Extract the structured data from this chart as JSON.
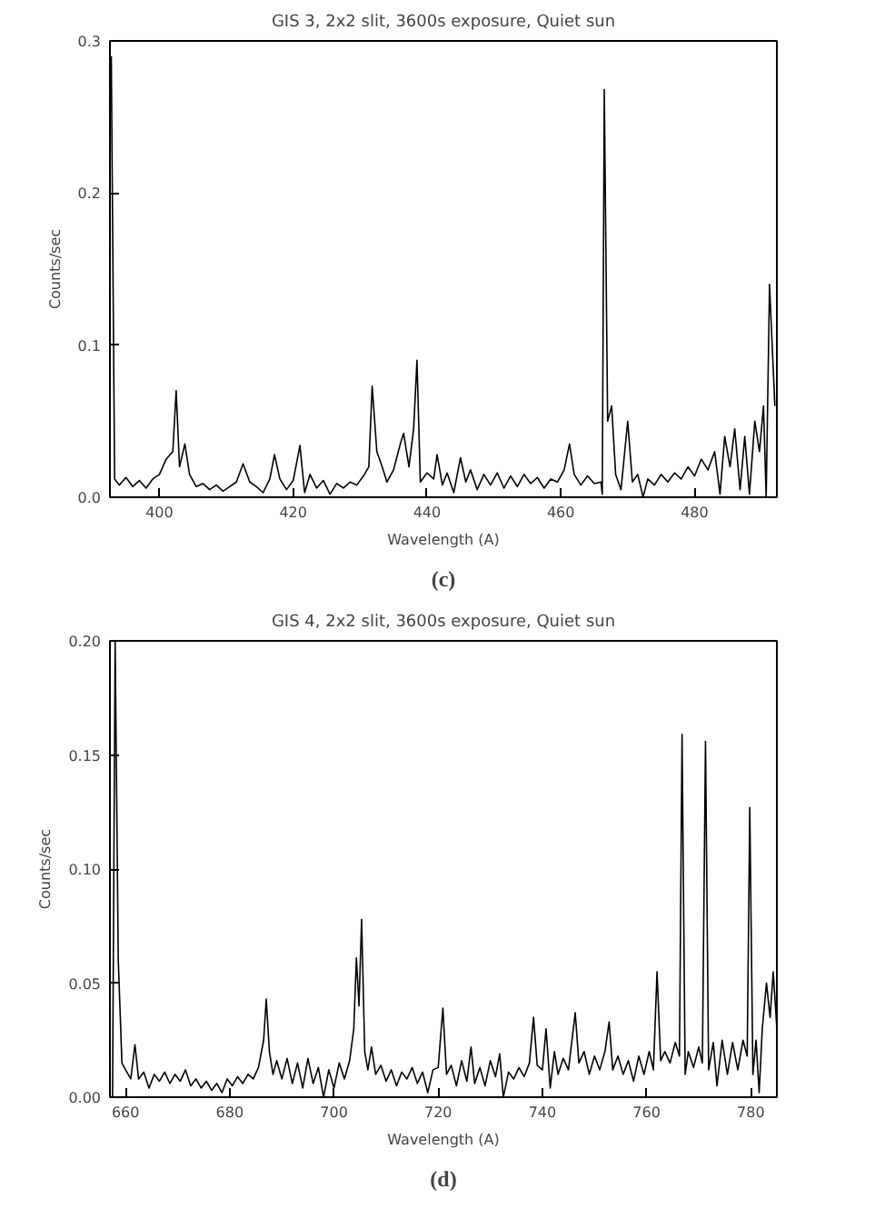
{
  "chart_data": [
    {
      "type": "line",
      "title": "GIS 3, 2x2 slit, 3600s exposure, Quiet sun",
      "xlabel": "Wavelength (A)",
      "ylabel": "Counts/sec",
      "annotations": [
        "(c)"
      ],
      "xlim": [
        392.6,
        492.3
      ],
      "ylim": [
        0,
        0.3
      ],
      "xticks": [
        400,
        420,
        440,
        460,
        480
      ],
      "yticks": [
        {
          "value": 0,
          "label": "0.0"
        },
        {
          "value": 0.1,
          "label": "0.1"
        },
        {
          "value": 0.2,
          "label": "0.2"
        },
        {
          "value": 0.3,
          "label": "0.3"
        }
      ],
      "grid": false,
      "series": [
        {
          "color": "#000000",
          "x": [
            392.8,
            393.3,
            394,
            395,
            396,
            397,
            398,
            399,
            400,
            401,
            402,
            402.5,
            403,
            403.8,
            404.5,
            405.5,
            406.5,
            407.5,
            408.5,
            409.5,
            410.5,
            411.5,
            412.5,
            413.5,
            414.5,
            415.5,
            416.5,
            417.2,
            418,
            419,
            420,
            421,
            421.7,
            422.5,
            423.5,
            424.5,
            425.5,
            426.5,
            427.5,
            428.5,
            429.5,
            430.5,
            431.3,
            431.8,
            432.5,
            433.3,
            434,
            435,
            436,
            436.5,
            437.3,
            438,
            438.5,
            439,
            440,
            441,
            441.5,
            442.3,
            443,
            444,
            445,
            445.8,
            446.5,
            447.5,
            448.5,
            449.5,
            450.5,
            451.5,
            452.5,
            453.5,
            454.5,
            455.5,
            456.5,
            457.5,
            458.5,
            459.5,
            460.5,
            461.3,
            462,
            463,
            464,
            465,
            466,
            466.2,
            466.5,
            467,
            467.6,
            468.2,
            469,
            470,
            470.7,
            471.5,
            472.3,
            473,
            474,
            475,
            476,
            477,
            478,
            479,
            480,
            481,
            482,
            483,
            483.8,
            484.5,
            485.3,
            486,
            486.8,
            487.5,
            488.2,
            489,
            489.7,
            490.3,
            490.7,
            491.2,
            491.6,
            492
          ],
          "values": [
            0.29,
            0.012,
            0.008,
            0.013,
            0.007,
            0.011,
            0.006,
            0.012,
            0.015,
            0.025,
            0.03,
            0.07,
            0.02,
            0.035,
            0.015,
            0.007,
            0.009,
            0.005,
            0.008,
            0.004,
            0.007,
            0.01,
            0.022,
            0.01,
            0.007,
            0.003,
            0.012,
            0.028,
            0.012,
            0.005,
            0.011,
            0.034,
            0.003,
            0.015,
            0.006,
            0.011,
            0.002,
            0.009,
            0.006,
            0.01,
            0.008,
            0.014,
            0.02,
            0.073,
            0.03,
            0.02,
            0.01,
            0.018,
            0.035,
            0.042,
            0.02,
            0.045,
            0.09,
            0.01,
            0.016,
            0.012,
            0.028,
            0.008,
            0.016,
            0.003,
            0.026,
            0.01,
            0.018,
            0.005,
            0.015,
            0.008,
            0.016,
            0.006,
            0.014,
            0.007,
            0.015,
            0.009,
            0.013,
            0.006,
            0.012,
            0.01,
            0.018,
            0.035,
            0.015,
            0.008,
            0.014,
            0.009,
            0.01,
            0.002,
            0.268,
            0.05,
            0.06,
            0.015,
            0.005,
            0.05,
            0.01,
            0.015,
            0.0,
            0.012,
            0.008,
            0.015,
            0.01,
            0.016,
            0.012,
            0.02,
            0.014,
            0.025,
            0.018,
            0.03,
            0.002,
            0.04,
            0.02,
            0.045,
            0.005,
            0.04,
            0.002,
            0.05,
            0.03,
            0.06,
            0.0,
            0.14,
            0.1,
            0.06
          ]
        }
      ]
    },
    {
      "type": "line",
      "title": "GIS 4, 2x2 slit, 3600s exposure, Quiet sun",
      "xlabel": "Wavelength (A)",
      "ylabel": "Counts/sec",
      "annotations": [
        "(d)"
      ],
      "xlim": [
        657,
        785
      ],
      "ylim": [
        0,
        0.2
      ],
      "xticks": [
        660,
        680,
        700,
        720,
        740,
        760,
        780
      ],
      "yticks": [
        {
          "value": 0,
          "label": "0.00"
        },
        {
          "value": 0.05,
          "label": "0.05"
        },
        {
          "value": 0.1,
          "label": "0.10"
        },
        {
          "value": 0.15,
          "label": "0.15"
        },
        {
          "value": 0.2,
          "label": "0.20"
        }
      ],
      "grid": false,
      "series": [
        {
          "color": "#000000",
          "x": [
            657.5,
            658,
            658.6,
            659.3,
            660,
            661,
            661.8,
            662.5,
            663.5,
            664.5,
            665.5,
            666.5,
            667.5,
            668.5,
            669.5,
            670.5,
            671.5,
            672.5,
            673.5,
            674.5,
            675.5,
            676.5,
            677.5,
            678.5,
            679.5,
            680.5,
            681.5,
            682.5,
            683.5,
            684.5,
            685.5,
            686.5,
            687,
            687.6,
            688.3,
            689,
            690,
            691,
            692,
            693,
            694,
            695,
            696,
            697,
            698,
            699,
            700,
            701,
            702,
            703,
            703.8,
            704.3,
            704.8,
            705.3,
            705.9,
            706.5,
            707.2,
            708,
            709,
            710,
            711,
            712,
            713,
            714,
            715,
            716,
            717,
            718,
            719,
            720,
            720.9,
            721.6,
            722.5,
            723.5,
            724.5,
            725.5,
            726.3,
            727,
            728,
            729,
            730,
            731,
            731.8,
            732.5,
            733.5,
            734.5,
            735.5,
            736.5,
            737.5,
            738.3,
            739,
            740,
            740.7,
            741.5,
            742.3,
            743,
            744,
            745,
            746.3,
            747,
            748,
            749,
            750,
            751,
            752,
            752.8,
            753.5,
            754.5,
            755.5,
            756.5,
            757.5,
            758.5,
            759.5,
            760.5,
            761.3,
            762,
            762.7,
            763.5,
            764.5,
            765.5,
            766.3,
            766.8,
            767.4,
            768,
            769,
            770,
            770.7,
            771.3,
            771.9,
            772.8,
            773.5,
            774.5,
            775.5,
            776.5,
            777.5,
            778.5,
            779.3,
            779.8,
            780.4,
            781,
            781.6,
            782.2,
            783,
            783.7,
            784.3,
            785
          ],
          "values": [
            0.0,
            0.2,
            0.06,
            0.015,
            0.012,
            0.008,
            0.023,
            0.008,
            0.011,
            0.004,
            0.01,
            0.007,
            0.011,
            0.006,
            0.01,
            0.007,
            0.012,
            0.005,
            0.008,
            0.004,
            0.007,
            0.003,
            0.006,
            0.002,
            0.008,
            0.005,
            0.009,
            0.006,
            0.01,
            0.008,
            0.013,
            0.025,
            0.043,
            0.02,
            0.01,
            0.016,
            0.008,
            0.017,
            0.006,
            0.015,
            0.004,
            0.017,
            0.006,
            0.013,
            0.0,
            0.012,
            0.004,
            0.015,
            0.008,
            0.016,
            0.03,
            0.061,
            0.04,
            0.078,
            0.02,
            0.012,
            0.022,
            0.01,
            0.014,
            0.007,
            0.012,
            0.005,
            0.011,
            0.008,
            0.013,
            0.006,
            0.011,
            0.002,
            0.012,
            0.013,
            0.039,
            0.01,
            0.014,
            0.005,
            0.016,
            0.007,
            0.022,
            0.006,
            0.013,
            0.005,
            0.016,
            0.009,
            0.019,
            0.0,
            0.011,
            0.008,
            0.013,
            0.009,
            0.015,
            0.035,
            0.014,
            0.012,
            0.03,
            0.004,
            0.02,
            0.01,
            0.017,
            0.012,
            0.037,
            0.015,
            0.02,
            0.01,
            0.018,
            0.012,
            0.02,
            0.033,
            0.012,
            0.018,
            0.01,
            0.016,
            0.007,
            0.018,
            0.01,
            0.02,
            0.012,
            0.055,
            0.016,
            0.02,
            0.015,
            0.024,
            0.018,
            0.159,
            0.01,
            0.02,
            0.013,
            0.022,
            0.015,
            0.156,
            0.012,
            0.024,
            0.005,
            0.025,
            0.01,
            0.024,
            0.012,
            0.025,
            0.018,
            0.127,
            0.01,
            0.025,
            0.002,
            0.03,
            0.05,
            0.035,
            0.055,
            0.03
          ]
        }
      ]
    }
  ]
}
